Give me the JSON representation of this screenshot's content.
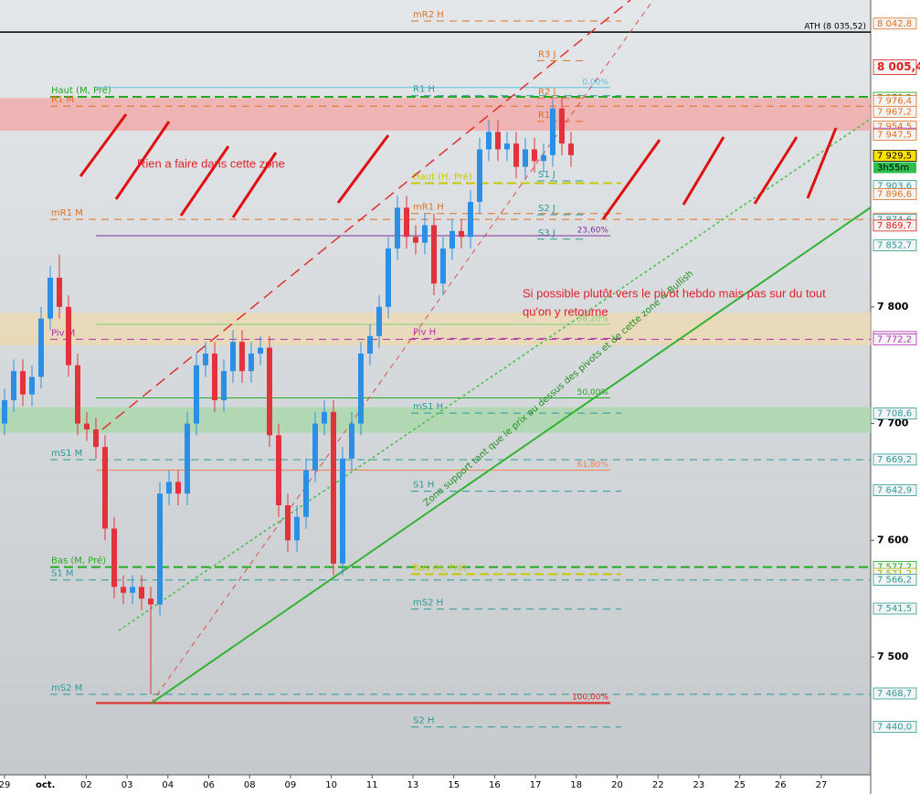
{
  "chart_data": {
    "type": "candlestick",
    "ylim": [
      7399,
      8063
    ],
    "yticks": [
      {
        "value": 7800,
        "label": "7 800"
      },
      {
        "value": 7700,
        "label": "7 700"
      },
      {
        "value": 7600,
        "label": "7 600"
      },
      {
        "value": 7500,
        "label": "7 500"
      }
    ],
    "categories": [
      "29",
      "oct.",
      "02",
      "03",
      "04",
      "06",
      "08",
      "09",
      "10",
      "11",
      "13",
      "15",
      "16",
      "17",
      "18",
      "20",
      "22",
      "23",
      "25",
      "26",
      "27"
    ],
    "candles": {
      "open": [
        7700,
        7720,
        7745,
        7725,
        7740,
        7790,
        7825,
        7800,
        7750,
        7700,
        7695,
        7680,
        7610,
        7560,
        7555,
        7560,
        7550,
        7545,
        7640,
        7650,
        7640,
        7700,
        7750,
        7760,
        7720,
        7745,
        7770,
        7745,
        7760,
        7765,
        7690,
        7630,
        7600,
        7620,
        7660,
        7700,
        7710,
        7580,
        7670,
        7700,
        7760,
        7775,
        7800,
        7850,
        7885,
        7860,
        7855,
        7870,
        7820,
        7850,
        7865,
        7860,
        7890,
        7935,
        7950,
        7935,
        7940,
        7920,
        7935,
        7925,
        7930,
        7970,
        7940
      ],
      "high": [
        7730,
        7755,
        7755,
        7750,
        7800,
        7835,
        7845,
        7810,
        7760,
        7710,
        7705,
        7690,
        7620,
        7570,
        7570,
        7570,
        7560,
        7650,
        7660,
        7660,
        7710,
        7760,
        7770,
        7770,
        7755,
        7780,
        7780,
        7770,
        7775,
        7775,
        7700,
        7640,
        7630,
        7670,
        7710,
        7720,
        7720,
        7680,
        7710,
        7770,
        7785,
        7810,
        7860,
        7895,
        7895,
        7870,
        7880,
        7880,
        7860,
        7875,
        7875,
        7900,
        7945,
        7960,
        7960,
        7950,
        7950,
        7945,
        7945,
        7940,
        7978,
        7980,
        7950
      ],
      "low": [
        7690,
        7710,
        7715,
        7715,
        7730,
        7780,
        7790,
        7740,
        7690,
        7685,
        7670,
        7600,
        7550,
        7545,
        7545,
        7540,
        7468,
        7535,
        7630,
        7630,
        7630,
        7690,
        7740,
        7710,
        7710,
        7735,
        7735,
        7735,
        7750,
        7680,
        7620,
        7590,
        7590,
        7610,
        7650,
        7690,
        7570,
        7570,
        7660,
        7690,
        7750,
        7765,
        7790,
        7840,
        7850,
        7845,
        7845,
        7810,
        7810,
        7840,
        7850,
        7850,
        7880,
        7925,
        7925,
        7925,
        7910,
        7910,
        7915,
        7915,
        7920,
        7930,
        7920
      ],
      "close": [
        7720,
        7745,
        7725,
        7740,
        7790,
        7825,
        7800,
        7750,
        7700,
        7695,
        7680,
        7610,
        7560,
        7555,
        7560,
        7550,
        7545,
        7640,
        7650,
        7640,
        7700,
        7750,
        7760,
        7720,
        7745,
        7770,
        7745,
        7760,
        7765,
        7690,
        7630,
        7600,
        7620,
        7660,
        7700,
        7710,
        7580,
        7670,
        7700,
        7760,
        7775,
        7800,
        7850,
        7885,
        7860,
        7855,
        7870,
        7820,
        7850,
        7865,
        7860,
        7890,
        7935,
        7950,
        7935,
        7940,
        7920,
        7935,
        7925,
        7930,
        7970,
        7940,
        7930
      ]
    },
    "up_color": "#2b8fe6",
    "down_color": "#e2323c",
    "zones": [
      {
        "from": 7951,
        "to": 7979,
        "color": "#f2a8a8"
      },
      {
        "from": 7767,
        "to": 7795,
        "color": "#ecd9b0"
      },
      {
        "from": 7692,
        "to": 7714,
        "color": "#a9d8a9"
      }
    ],
    "ath": {
      "label": "ATH (8 035,52)",
      "value": 8035.52
    },
    "levels": [
      {
        "label": "mR2 H",
        "value": 8045,
        "color": "#e07020",
        "style": "dashed"
      },
      {
        "label": "R3 J",
        "value": 8011,
        "color": "#e07020",
        "style": "dashed"
      },
      {
        "label": "Haut (M, Pré)",
        "value": 7980,
        "color": "#22aa22",
        "style": "dashed"
      },
      {
        "label": "R1 H",
        "value": 7981,
        "color": "#2a9a9a",
        "style": "dashed"
      },
      {
        "label": "R2 J",
        "value": 7979,
        "color": "#e07020",
        "style": "dashed"
      },
      {
        "label": "R1 M",
        "value": 7972,
        "color": "#e07020",
        "style": "dashed"
      },
      {
        "label": "R1 J",
        "value": 7959,
        "color": "#e07020",
        "style": "dashed"
      },
      {
        "label": "Haut (H, Pré)",
        "value": 7906,
        "color": "#c8c800",
        "style": "dashed"
      },
      {
        "label": "S1 J",
        "value": 7908,
        "color": "#2a9a9a",
        "style": "dashed"
      },
      {
        "label": "mR1 H",
        "value": 7880,
        "color": "#e07020",
        "style": "dashed"
      },
      {
        "label": "S2 J",
        "value": 7879,
        "color": "#2a9a9a",
        "style": "dashed"
      },
      {
        "label": "mR1 M",
        "value": 7875,
        "color": "#e07020",
        "style": "dashed"
      },
      {
        "label": "S3 J",
        "value": 7858,
        "color": "#2a9a9a",
        "style": "dashed"
      },
      {
        "label": "Piv H",
        "value": 7773,
        "color": "#b030b0",
        "style": "dashed"
      },
      {
        "label": "Piv M",
        "value": 7772.2,
        "color": "#b030b0",
        "style": "dashed"
      },
      {
        "label": "mS1 H",
        "value": 7709,
        "color": "#2a9a9a",
        "style": "dashed"
      },
      {
        "label": "mS1 M",
        "value": 7669,
        "color": "#2a9a9a",
        "style": "dashed"
      },
      {
        "label": "S1 H",
        "value": 7642,
        "color": "#2a9a9a",
        "style": "dashed"
      },
      {
        "label": "Bas (M, Pré)",
        "value": 7577,
        "color": "#22aa22",
        "style": "dashed"
      },
      {
        "label": "Bas (H, Pré)",
        "value": 7571,
        "color": "#c8c800",
        "style": "dashed"
      },
      {
        "label": "S1 M",
        "value": 7566,
        "color": "#2a9a9a",
        "style": "dashed"
      },
      {
        "label": "mS2 H",
        "value": 7541,
        "color": "#2a9a9a",
        "style": "dashed"
      },
      {
        "label": "mS2 M",
        "value": 7468,
        "color": "#2a9a9a",
        "style": "dashed"
      },
      {
        "label": "S2 H",
        "value": 7440,
        "color": "#2a9a9a",
        "style": "dashed"
      }
    ],
    "fib": [
      {
        "label": "0,00%",
        "price": 7988,
        "color": "#5bc0de"
      },
      {
        "label": "23,60%",
        "price": 7861,
        "color": "#8030a0"
      },
      {
        "label": "38,20%",
        "price": 7785,
        "color": "#7fd07f"
      },
      {
        "label": "50,00%",
        "price": 7722,
        "color": "#22aa22"
      },
      {
        "label": "61,80%",
        "price": 7660,
        "color": "#f08050"
      },
      {
        "label": "100,00%",
        "price": 7461,
        "color": "#e02020"
      }
    ],
    "price_tags": [
      {
        "value": 8042.8,
        "label": "8 042,8",
        "color": "#e07020"
      },
      {
        "value": 8005.4,
        "label": "8 005,4",
        "color": "#e02020"
      },
      {
        "value": 7979.2,
        "label": "7 979,2",
        "color": "#22aa22"
      },
      {
        "value": 7976.4,
        "label": "7 976,4",
        "color": "#e07020"
      },
      {
        "value": 7967.2,
        "label": "7 967,2",
        "color": "#e07020"
      },
      {
        "value": 7954.5,
        "label": "7 954,5",
        "color": "#e07020"
      },
      {
        "value": 7948.5,
        "label": "7 948,5",
        "color": "#b030b0"
      },
      {
        "value": 7947.5,
        "label": "7 947,5",
        "color": "#e07020"
      },
      {
        "value": 7929.5,
        "label": "7 929,5",
        "color": "#000000"
      },
      {
        "value": 7903.6,
        "label": "7 903,6",
        "color": "#2a9a9a"
      },
      {
        "value": 7896.6,
        "label": "7 896,6",
        "color": "#e07020"
      },
      {
        "value": 7875.7,
        "label": "7 875,7",
        "color": "#e07020"
      },
      {
        "value": 7874.6,
        "label": "7 874,6",
        "color": "#2a9a9a"
      },
      {
        "value": 7869.7,
        "label": "7 869,7",
        "color": "#e02020"
      },
      {
        "value": 7852.7,
        "label": "7 852,7",
        "color": "#2a9a9a"
      },
      {
        "value": 7774.2,
        "label": "7 774,2",
        "color": "#b030b0"
      },
      {
        "value": 7772.2,
        "label": "7 772,2",
        "color": "#b030b0"
      },
      {
        "value": 7708.6,
        "label": "7 708,6",
        "color": "#2a9a9a"
      },
      {
        "value": 7669.2,
        "label": "7 669,2",
        "color": "#2a9a9a"
      },
      {
        "value": 7642.9,
        "label": "7 642,9",
        "color": "#2a9a9a"
      },
      {
        "value": 7577.2,
        "label": "7 577,2",
        "color": "#22aa22"
      },
      {
        "value": 7571.2,
        "label": "7 571,2",
        "color": "#b0b000"
      },
      {
        "value": 7566.2,
        "label": "7 566,2",
        "color": "#2a9a9a"
      },
      {
        "value": 7541.5,
        "label": "7 541,5",
        "color": "#2a9a9a"
      },
      {
        "value": 7468.7,
        "label": "7 468,7",
        "color": "#2a9a9a"
      },
      {
        "value": 7440.0,
        "label": "7 440,0",
        "color": "#2a9a9a"
      }
    ],
    "timer": "3h55m",
    "annotations": [
      "Rien a faire dans cette zone",
      "Si possible plutôt vers le pivot hebdo mais pas sur du tout",
      "qu'on y retourne",
      "Zone support tant que le prix au dessus des pivots et de cette zone = Bullish"
    ]
  }
}
